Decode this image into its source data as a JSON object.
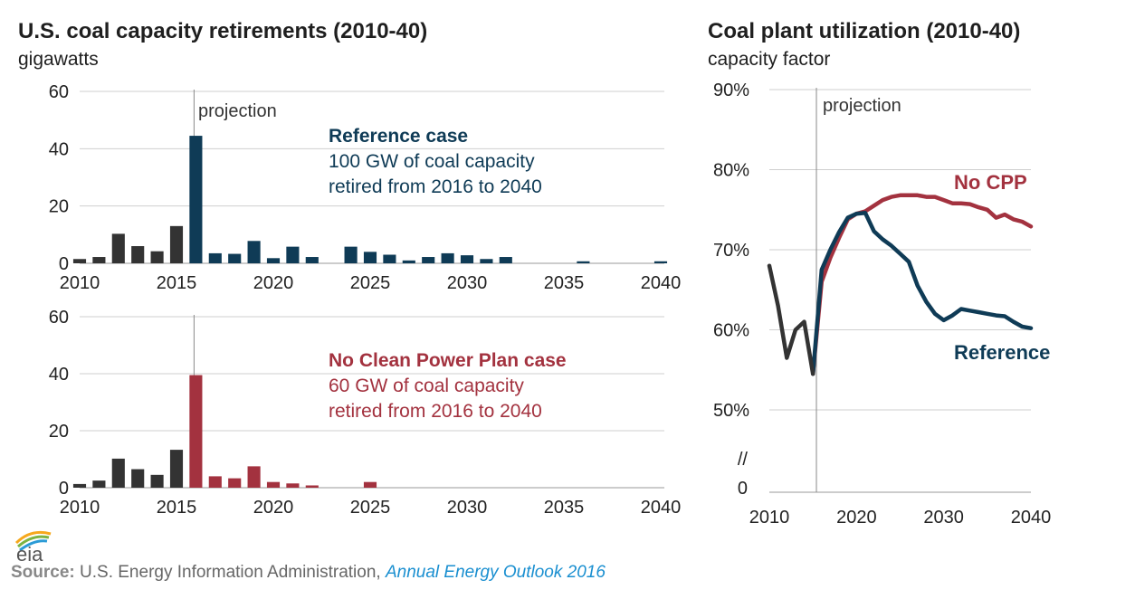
{
  "colors": {
    "history": "#333333",
    "reference": "#0f3b56",
    "no_cpp": "#a3323f",
    "grid": "#cfcfcf",
    "divider": "#8a8a8a"
  },
  "chart_data": [
    {
      "type": "bar",
      "title": "U.S. coal capacity retirements (2010-40)",
      "ylabel": "gigawatts",
      "x": [
        2010,
        2011,
        2012,
        2013,
        2014,
        2015,
        2016,
        2017,
        2018,
        2019,
        2020,
        2021,
        2022,
        2023,
        2024,
        2025,
        2026,
        2027,
        2028,
        2029,
        2030,
        2031,
        2032,
        2033,
        2034,
        2035,
        2036,
        2037,
        2038,
        2039,
        2040
      ],
      "values": [
        1.5,
        2.2,
        10.3,
        6.0,
        4.2,
        13.0,
        44.5,
        3.5,
        3.3,
        7.8,
        1.8,
        5.8,
        2.2,
        0,
        5.8,
        4.0,
        3.0,
        1.0,
        2.2,
        3.5,
        2.8,
        1.5,
        2.2,
        0,
        0,
        0,
        0.7,
        0,
        0,
        0,
        0.7
      ],
      "projection_start": 2016,
      "xlim": [
        2010,
        2040
      ],
      "ylim": [
        0,
        60
      ],
      "yticks": [
        0,
        20,
        40,
        60
      ],
      "xticks": [
        2010,
        2015,
        2020,
        2025,
        2030,
        2035,
        2040
      ],
      "annotation": "projection",
      "case_title": "Reference case",
      "case_text": [
        "100 GW of coal capacity",
        "retired from 2016 to 2040"
      ]
    },
    {
      "type": "bar",
      "x": [
        2010,
        2011,
        2012,
        2013,
        2014,
        2015,
        2016,
        2017,
        2018,
        2019,
        2020,
        2021,
        2022,
        2023,
        2024,
        2025,
        2026,
        2027,
        2028,
        2029,
        2030,
        2031,
        2032,
        2033,
        2034,
        2035,
        2036,
        2037,
        2038,
        2039,
        2040
      ],
      "values": [
        1.3,
        2.5,
        10.2,
        6.5,
        4.5,
        13.3,
        39.5,
        4.0,
        3.3,
        7.5,
        2.0,
        1.5,
        0.8,
        0,
        0,
        2.0,
        0,
        0,
        0,
        0,
        0,
        0,
        0,
        0,
        0,
        0,
        0,
        0,
        0,
        0,
        0
      ],
      "projection_start": 2016,
      "xlim": [
        2010,
        2040
      ],
      "ylim": [
        0,
        60
      ],
      "yticks": [
        0,
        20,
        40,
        60
      ],
      "xticks": [
        2010,
        2015,
        2020,
        2025,
        2030,
        2035,
        2040
      ],
      "case_title": "No Clean Power Plan case",
      "case_text": [
        "60 GW of coal capacity",
        "retired from 2016 to 2040"
      ]
    },
    {
      "type": "line",
      "title": "Coal plant utilization (2010-40)",
      "ylabel": "capacity factor",
      "annotation": "projection",
      "ylim": [
        50,
        90
      ],
      "yticks": [
        50,
        60,
        70,
        80,
        90
      ],
      "ytick_labels": [
        "50%",
        "60%",
        "70%",
        "80%",
        "90%"
      ],
      "axis_break_label": "//",
      "axis_zero_label": "0",
      "xlim": [
        2010,
        2040
      ],
      "xticks": [
        2010,
        2020,
        2030,
        2040
      ],
      "series": [
        {
          "name": "history",
          "x": [
            2010,
            2011,
            2012,
            2013,
            2014,
            2015
          ],
          "values": [
            68,
            63,
            56.5,
            60,
            61,
            54.5
          ]
        },
        {
          "name": "No CPP",
          "x": [
            2015,
            2016,
            2017,
            2018,
            2019,
            2020,
            2021,
            2022,
            2023,
            2024,
            2025,
            2026,
            2027,
            2028,
            2029,
            2030,
            2031,
            2032,
            2033,
            2034,
            2035,
            2036,
            2037,
            2038,
            2039,
            2040
          ],
          "values": [
            54.5,
            66,
            69,
            71.5,
            73.8,
            74.5,
            74.8,
            75.5,
            76.2,
            76.6,
            76.8,
            76.8,
            76.8,
            76.6,
            76.6,
            76.2,
            75.8,
            75.8,
            75.7,
            75.3,
            75.0,
            74.0,
            74.4,
            73.8,
            73.5,
            72.9
          ]
        },
        {
          "name": "Reference",
          "x": [
            2015,
            2016,
            2017,
            2018,
            2019,
            2020,
            2021,
            2022,
            2023,
            2024,
            2025,
            2026,
            2027,
            2028,
            2029,
            2030,
            2031,
            2032,
            2033,
            2034,
            2035,
            2036,
            2037,
            2038,
            2039,
            2040
          ],
          "values": [
            54.5,
            67.5,
            70,
            72.2,
            74,
            74.5,
            74.6,
            72.3,
            71.3,
            70.5,
            69.5,
            68.5,
            65.5,
            63.5,
            62,
            61.2,
            61.8,
            62.6,
            62.4,
            62.2,
            62,
            61.8,
            61.7,
            61,
            60.4,
            60.2
          ]
        }
      ]
    }
  ],
  "source": {
    "label": "Source:",
    "text": "U.S. Energy Information Administration,",
    "link": "Annual Energy Outlook 2016"
  },
  "logo": {
    "text": "eia",
    "colors": [
      "#f6a81c",
      "#7cb342",
      "#2b9bd6"
    ]
  }
}
